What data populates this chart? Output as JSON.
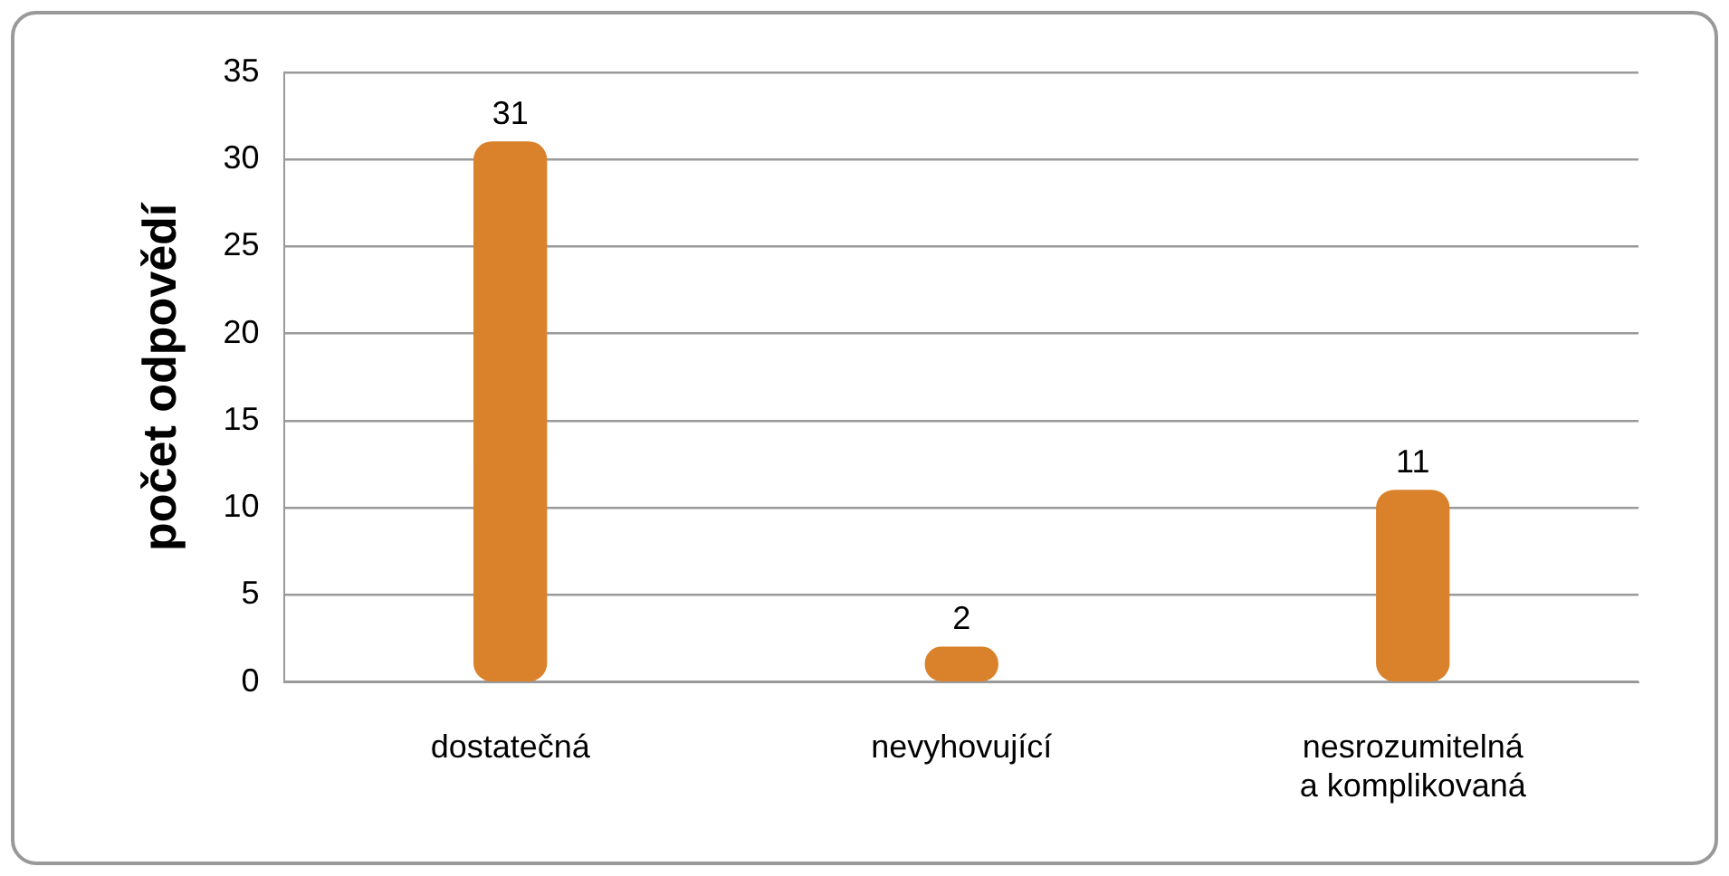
{
  "chart_data": {
    "type": "bar",
    "ylabel": "počet odpovědí",
    "categories": [
      "dostatečná",
      "nevyhovující",
      "nesrozumitelná a komplikovaná"
    ],
    "values": [
      31,
      2,
      11
    ],
    "color": "#d9822b",
    "ylim": [
      0,
      35
    ],
    "yticks": [
      0,
      5,
      10,
      15,
      20,
      25,
      30,
      35
    ],
    "grid": "y",
    "data_labels": true,
    "legend": false
  }
}
